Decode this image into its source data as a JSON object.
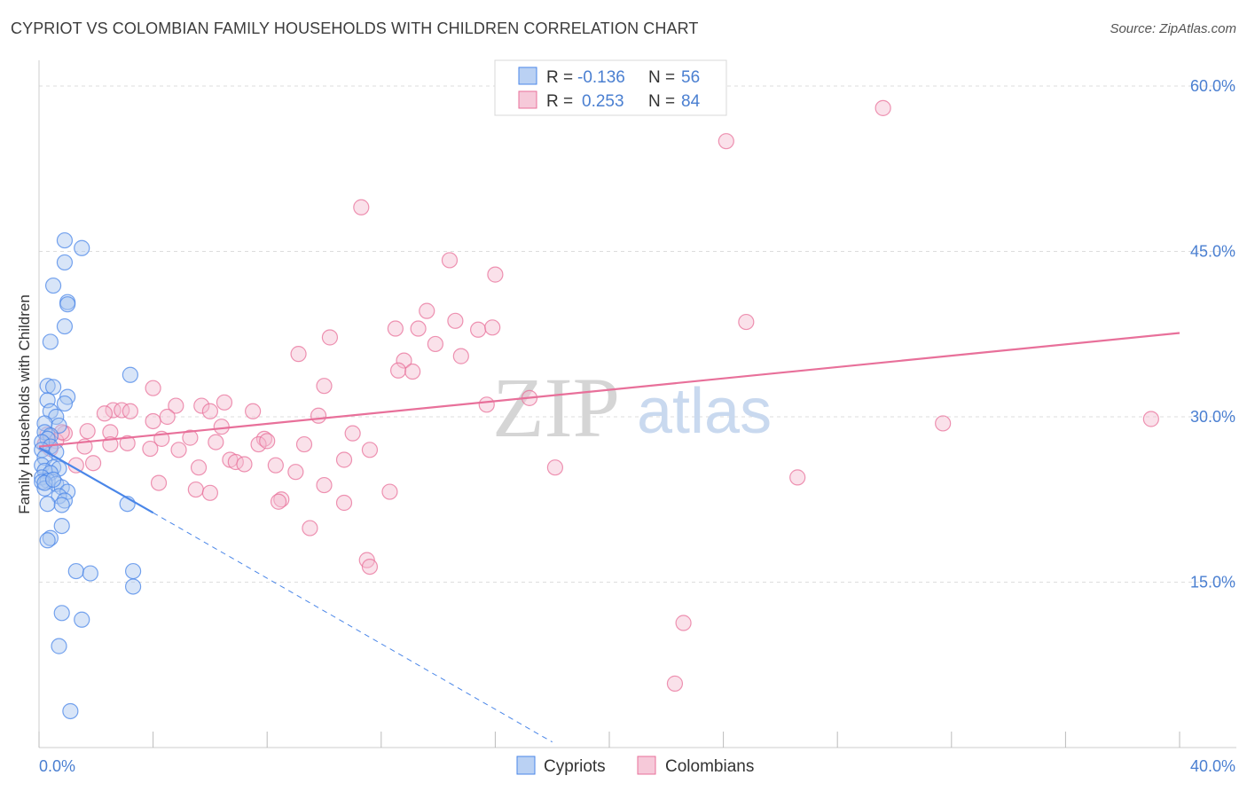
{
  "header": {
    "title": "CYPRIOT VS COLOMBIAN FAMILY HOUSEHOLDS WITH CHILDREN CORRELATION CHART",
    "source": "Source: ZipAtlas.com"
  },
  "colors": {
    "cypriots": "#4a86e8",
    "cypriots_fill": "#a9c6f0",
    "colombians": "#e8709a",
    "colombians_fill": "#f4bcd0",
    "axis_labels": "#4a7fd1",
    "grid": "#dddddd"
  },
  "watermark": {
    "zip": "ZIP",
    "atlas": "atlas"
  },
  "chart_data": {
    "type": "scatter",
    "title": "CYPRIOT VS COLOMBIAN FAMILY HOUSEHOLDS WITH CHILDREN CORRELATION CHART",
    "xlabel": "",
    "ylabel": "Family Households with Children",
    "xlim": [
      0,
      40
    ],
    "ylim": [
      0,
      60
    ],
    "x_tick_labels": [
      "0.0%",
      "40.0%"
    ],
    "y_ticks": [
      15,
      30,
      45,
      60
    ],
    "y_tick_labels": [
      "15.0%",
      "30.0%",
      "45.0%",
      "60.0%"
    ],
    "grid": true,
    "legend": {
      "position": "top-center",
      "entries": [
        {
          "r_label": "R =",
          "r_value": "-0.136",
          "n_label": "N =",
          "n_value": "56"
        },
        {
          "r_label": "R =",
          "r_value": "0.253",
          "n_label": "N =",
          "n_value": "84"
        }
      ]
    },
    "series": [
      {
        "name": "Cypriots",
        "trend": {
          "x0": 0.0,
          "y0": 27.2,
          "x1": 4.0,
          "y1": 21.3,
          "dash_to_x": 18.0,
          "dash_to_y": 0.5
        },
        "points": [
          [
            0.9,
            46.0
          ],
          [
            1.5,
            45.3
          ],
          [
            0.9,
            44.0
          ],
          [
            0.5,
            41.9
          ],
          [
            1.0,
            40.4
          ],
          [
            1.0,
            40.2
          ],
          [
            0.9,
            38.2
          ],
          [
            0.4,
            36.8
          ],
          [
            3.2,
            33.8
          ],
          [
            0.3,
            32.8
          ],
          [
            0.5,
            32.7
          ],
          [
            1.0,
            31.8
          ],
          [
            0.3,
            31.5
          ],
          [
            0.9,
            31.2
          ],
          [
            0.4,
            30.5
          ],
          [
            0.6,
            30.0
          ],
          [
            0.2,
            29.4
          ],
          [
            0.7,
            29.2
          ],
          [
            0.2,
            28.6
          ],
          [
            0.4,
            28.3
          ],
          [
            0.3,
            28.0
          ],
          [
            0.1,
            27.7
          ],
          [
            0.4,
            27.3
          ],
          [
            0.1,
            27.0
          ],
          [
            0.6,
            26.8
          ],
          [
            0.2,
            26.3
          ],
          [
            0.1,
            25.6
          ],
          [
            0.5,
            25.4
          ],
          [
            0.7,
            25.3
          ],
          [
            0.2,
            25.1
          ],
          [
            0.4,
            24.9
          ],
          [
            0.1,
            24.5
          ],
          [
            0.3,
            24.2
          ],
          [
            0.1,
            24.1
          ],
          [
            0.6,
            23.9
          ],
          [
            0.8,
            23.6
          ],
          [
            0.2,
            23.5
          ],
          [
            1.0,
            23.2
          ],
          [
            0.7,
            22.8
          ],
          [
            0.9,
            22.4
          ],
          [
            0.3,
            22.1
          ],
          [
            0.8,
            22.0
          ],
          [
            3.1,
            22.1
          ],
          [
            0.8,
            20.1
          ],
          [
            0.4,
            19.0
          ],
          [
            0.3,
            18.8
          ],
          [
            1.3,
            16.0
          ],
          [
            1.8,
            15.8
          ],
          [
            3.3,
            16.0
          ],
          [
            3.3,
            14.6
          ],
          [
            0.8,
            12.2
          ],
          [
            1.5,
            11.6
          ],
          [
            0.7,
            9.2
          ],
          [
            1.1,
            3.3
          ],
          [
            0.2,
            24.0
          ],
          [
            0.5,
            24.3
          ]
        ]
      },
      {
        "name": "Colombians",
        "trend": {
          "x0": 0.0,
          "y0": 27.3,
          "x1": 40.0,
          "y1": 37.6
        },
        "points": [
          [
            29.6,
            58.0
          ],
          [
            24.1,
            55.0
          ],
          [
            11.3,
            49.0
          ],
          [
            14.4,
            44.2
          ],
          [
            16.0,
            42.9
          ],
          [
            13.6,
            39.6
          ],
          [
            24.8,
            38.6
          ],
          [
            14.6,
            38.7
          ],
          [
            12.5,
            38.0
          ],
          [
            13.3,
            38.0
          ],
          [
            15.4,
            37.9
          ],
          [
            15.9,
            38.1
          ],
          [
            10.2,
            37.2
          ],
          [
            13.9,
            36.6
          ],
          [
            14.8,
            35.5
          ],
          [
            9.1,
            35.7
          ],
          [
            12.8,
            35.1
          ],
          [
            12.6,
            34.2
          ],
          [
            13.1,
            34.1
          ],
          [
            10.0,
            32.8
          ],
          [
            4.0,
            32.6
          ],
          [
            17.2,
            31.7
          ],
          [
            15.7,
            31.1
          ],
          [
            6.5,
            31.3
          ],
          [
            4.8,
            31.0
          ],
          [
            5.7,
            31.0
          ],
          [
            2.6,
            30.6
          ],
          [
            2.9,
            30.6
          ],
          [
            3.2,
            30.5
          ],
          [
            6.0,
            30.5
          ],
          [
            7.5,
            30.5
          ],
          [
            2.3,
            30.3
          ],
          [
            9.8,
            30.1
          ],
          [
            4.5,
            30.0
          ],
          [
            4.0,
            29.6
          ],
          [
            31.7,
            29.4
          ],
          [
            39.0,
            29.8
          ],
          [
            6.4,
            29.1
          ],
          [
            1.7,
            28.7
          ],
          [
            2.5,
            28.6
          ],
          [
            11.0,
            28.5
          ],
          [
            4.3,
            28.0
          ],
          [
            5.3,
            28.1
          ],
          [
            7.9,
            28.0
          ],
          [
            0.9,
            28.5
          ],
          [
            0.3,
            28.4
          ],
          [
            6.2,
            27.7
          ],
          [
            7.7,
            27.5
          ],
          [
            9.3,
            27.5
          ],
          [
            1.6,
            27.3
          ],
          [
            2.5,
            27.5
          ],
          [
            3.1,
            27.6
          ],
          [
            3.9,
            27.1
          ],
          [
            4.9,
            27.0
          ],
          [
            11.6,
            27.0
          ],
          [
            0.6,
            27.8
          ],
          [
            0.2,
            27.5
          ],
          [
            0.4,
            27.1
          ],
          [
            8.0,
            27.8
          ],
          [
            6.7,
            26.1
          ],
          [
            6.9,
            25.9
          ],
          [
            10.7,
            26.1
          ],
          [
            1.3,
            25.6
          ],
          [
            1.9,
            25.8
          ],
          [
            7.2,
            25.7
          ],
          [
            8.3,
            25.6
          ],
          [
            5.6,
            25.4
          ],
          [
            9.0,
            25.0
          ],
          [
            18.1,
            25.4
          ],
          [
            26.6,
            24.5
          ],
          [
            4.2,
            24.0
          ],
          [
            10.0,
            23.8
          ],
          [
            5.5,
            23.4
          ],
          [
            6.0,
            23.1
          ],
          [
            12.3,
            23.2
          ],
          [
            8.5,
            22.5
          ],
          [
            8.4,
            22.3
          ],
          [
            10.7,
            22.2
          ],
          [
            9.5,
            19.9
          ],
          [
            11.5,
            17.0
          ],
          [
            11.6,
            16.4
          ],
          [
            22.6,
            11.3
          ],
          [
            22.3,
            5.8
          ],
          [
            0.8,
            28.6
          ]
        ]
      }
    ]
  },
  "bottom_legend": {
    "items": [
      "Cypriots",
      "Colombians"
    ]
  }
}
